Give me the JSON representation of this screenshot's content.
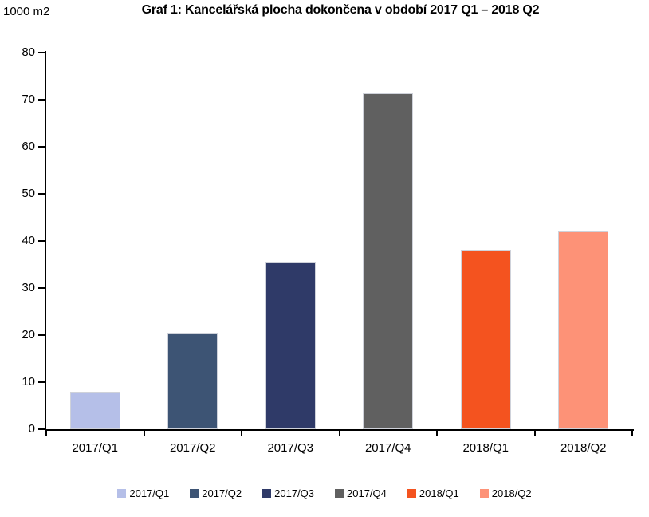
{
  "header": {
    "unit_label": "1000 m2",
    "title": "Graf 1: Kancelářská plocha dokončena v období 2017 Q1 – 2018 Q2"
  },
  "chart_data": {
    "type": "bar",
    "title": "Graf 1: Kancelářská plocha dokončena v období 2017 Q1 – 2018 Q2",
    "unit_label": "1000 m2",
    "xlabel": "",
    "ylabel": "1000 m2",
    "categories": [
      "2017/Q1",
      "2017/Q2",
      "2017/Q3",
      "2017/Q4",
      "2018/Q1",
      "2018/Q2"
    ],
    "values": [
      8,
      20.3,
      35.5,
      71.3,
      38.2,
      42
    ],
    "colors": [
      "#b5bfe8",
      "#3d5474",
      "#2f3a68",
      "#606060",
      "#f4531f",
      "#fd9277"
    ],
    "ylim": [
      0,
      80
    ],
    "ytick_step": 10,
    "yticks": [
      0,
      10,
      20,
      30,
      40,
      50,
      60,
      70,
      80
    ],
    "grid": false,
    "legend_position": "bottom",
    "legend": [
      {
        "label": "2017/Q1",
        "color": "#b5bfe8"
      },
      {
        "label": "2017/Q2",
        "color": "#3d5474"
      },
      {
        "label": "2017/Q3",
        "color": "#2f3a68"
      },
      {
        "label": "2017/Q4",
        "color": "#606060"
      },
      {
        "label": "2018/Q1",
        "color": "#f4531f"
      },
      {
        "label": "2018/Q2",
        "color": "#fd9277"
      }
    ],
    "axis_color": "#000000"
  }
}
